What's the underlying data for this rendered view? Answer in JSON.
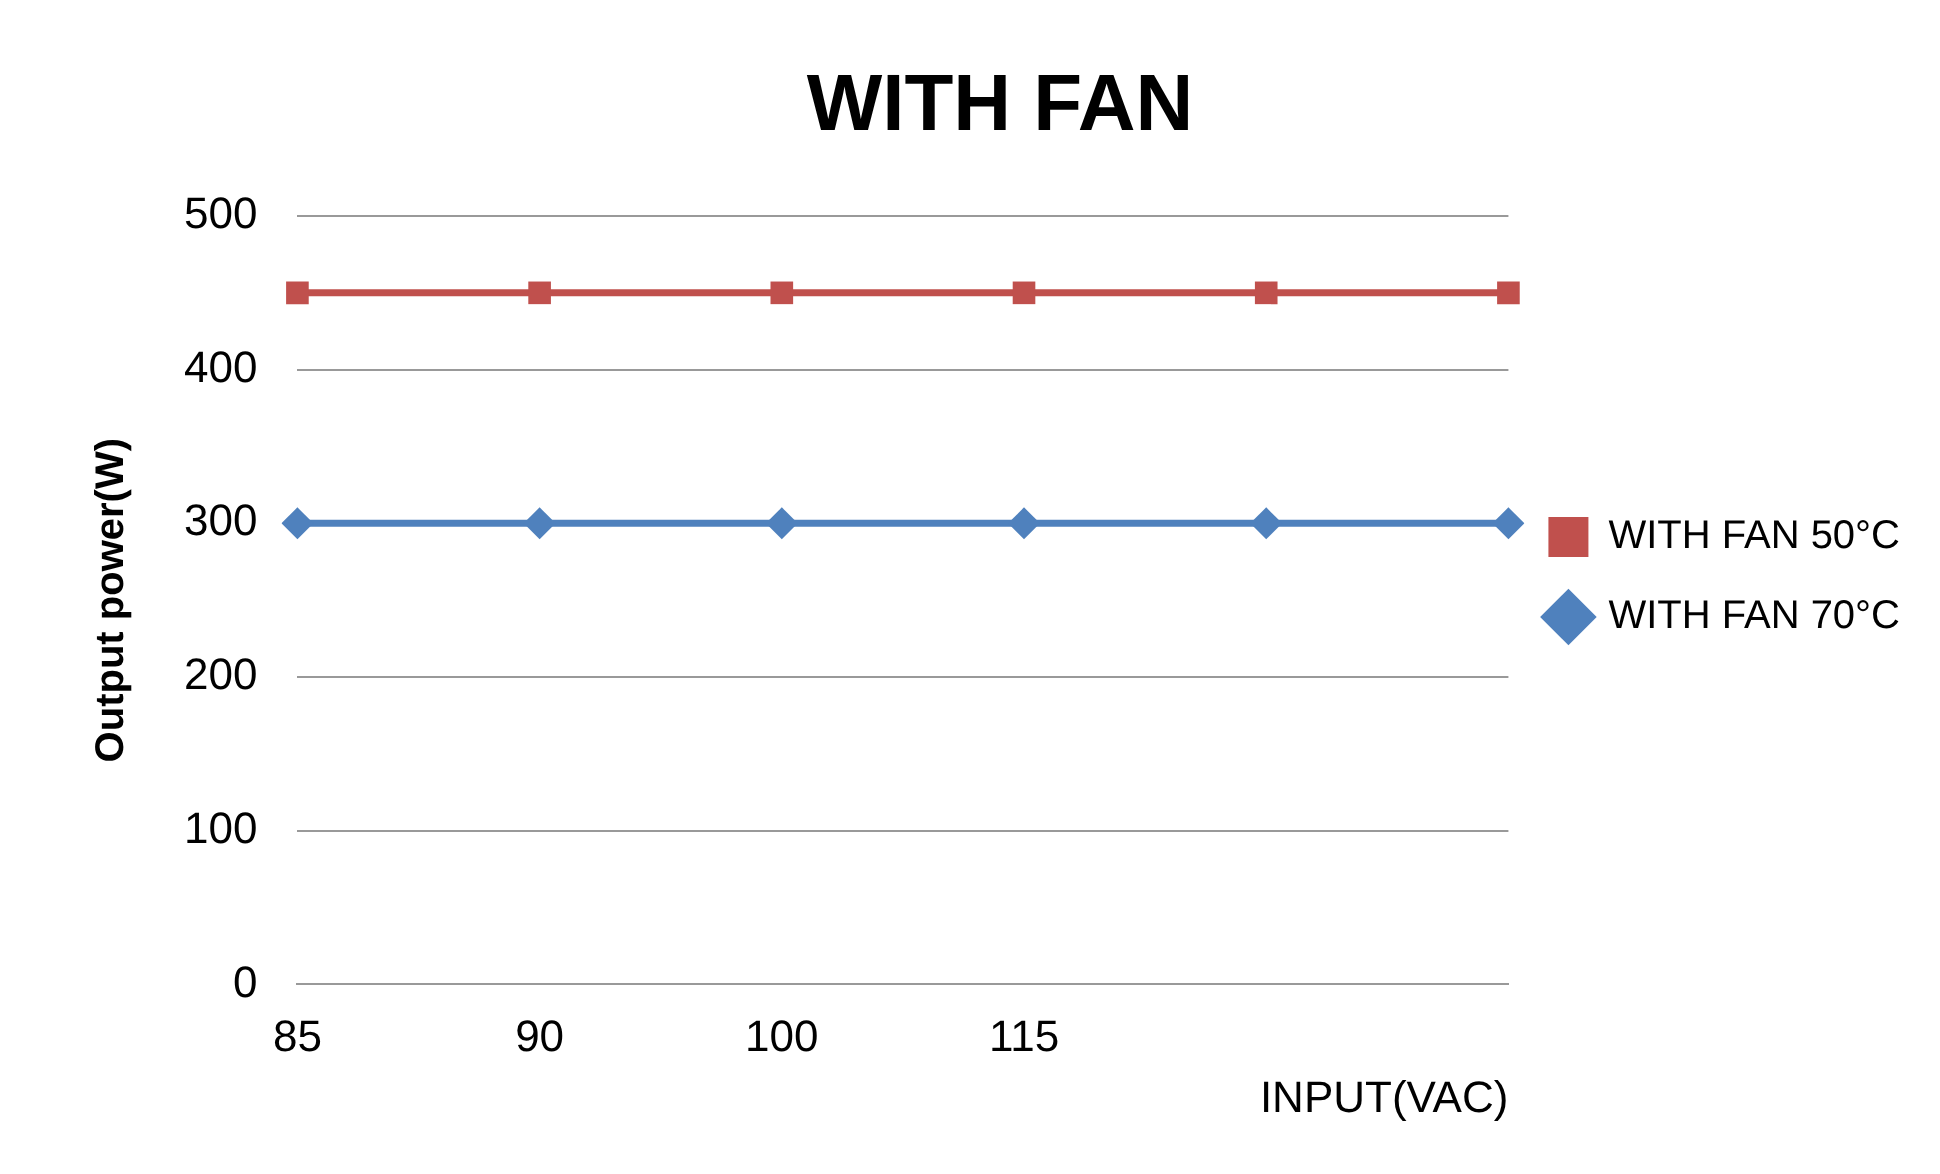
{
  "chart_data": {
    "type": "line",
    "title": "WITH FAN",
    "xlabel": "INPUT(VAC)",
    "ylabel": "Output power(W)",
    "categories": [
      "85",
      "90",
      "100",
      "115",
      null,
      null
    ],
    "series": [
      {
        "name": "WITH FAN 50°C",
        "color": "#c0504d",
        "marker": "square",
        "values": [
          450,
          450,
          450,
          450,
          450,
          450
        ]
      },
      {
        "name": "WITH FAN 70°C",
        "color": "#4f81bd",
        "marker": "diamond",
        "values": [
          300,
          300,
          300,
          300,
          300,
          300
        ]
      }
    ],
    "ylim": [
      0,
      500
    ],
    "yticks": [
      0,
      100,
      200,
      300,
      400,
      500
    ],
    "grid": "y",
    "legend": "right"
  }
}
